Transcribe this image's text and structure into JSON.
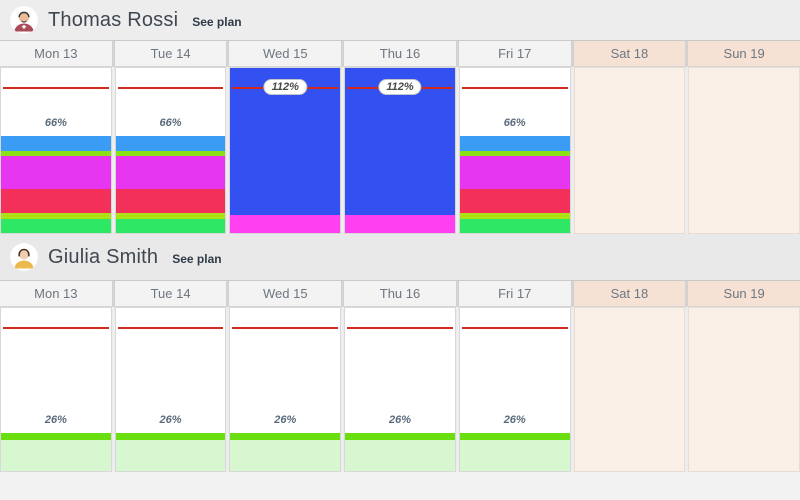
{
  "colors": {
    "capacity_line": "#d02b1e",
    "weekend_bg": "#faf0e7",
    "weekend_header_bg": "#f6e2d4",
    "overload_blue": "#3350f0"
  },
  "columns": [
    {
      "label": "Mon 13",
      "weekend": false
    },
    {
      "label": "Tue 14",
      "weekend": false
    },
    {
      "label": "Wed 15",
      "weekend": false
    },
    {
      "label": "Thu 16",
      "weekend": false
    },
    {
      "label": "Fri 17",
      "weekend": false
    },
    {
      "label": "Sat 18",
      "weekend": true
    },
    {
      "label": "Sun 19",
      "weekend": true
    }
  ],
  "people": [
    {
      "name": "Thomas Rossi",
      "see_plan": "See plan",
      "avatar": "man-beard-red-shirt",
      "allocations": [
        {
          "day": "Mon 13",
          "weekend": false,
          "total_label": "66%",
          "overload": false,
          "segments": [
            {
              "color": "#3b9cf5",
              "pct": 10.2
            },
            {
              "color": "#8ce016",
              "pct": 3.1
            },
            {
              "color": "#e636f2",
              "pct": 22.8
            },
            {
              "color": "#f23059",
              "pct": 16.0
            },
            {
              "color": "#aee016",
              "pct": 4.1
            },
            {
              "color": "#2ee865",
              "pct": 9.8
            }
          ]
        },
        {
          "day": "Tue 14",
          "weekend": false,
          "total_label": "66%",
          "overload": false,
          "segments": [
            {
              "color": "#3b9cf5",
              "pct": 10.2
            },
            {
              "color": "#8ce016",
              "pct": 3.1
            },
            {
              "color": "#e636f2",
              "pct": 22.8
            },
            {
              "color": "#f23059",
              "pct": 16.0
            },
            {
              "color": "#aee016",
              "pct": 4.1
            },
            {
              "color": "#2ee865",
              "pct": 9.8
            }
          ]
        },
        {
          "day": "Wed 15",
          "weekend": false,
          "total_label": "112%",
          "overload": true,
          "segments": [
            {
              "color": "#3350f0",
              "pct": 100
            },
            {
              "color": "#ff3ff0",
              "pct": 12
            }
          ]
        },
        {
          "day": "Thu 16",
          "weekend": false,
          "total_label": "112%",
          "overload": true,
          "segments": [
            {
              "color": "#3350f0",
              "pct": 100
            },
            {
              "color": "#ff3ff0",
              "pct": 12
            }
          ]
        },
        {
          "day": "Fri 17",
          "weekend": false,
          "total_label": "66%",
          "overload": false,
          "segments": [
            {
              "color": "#3b9cf5",
              "pct": 10.2
            },
            {
              "color": "#8ce016",
              "pct": 3.1
            },
            {
              "color": "#e636f2",
              "pct": 22.8
            },
            {
              "color": "#f23059",
              "pct": 16.0
            },
            {
              "color": "#aee016",
              "pct": 4.1
            },
            {
              "color": "#2ee865",
              "pct": 9.8
            }
          ]
        },
        {
          "day": "Sat 18",
          "weekend": true
        },
        {
          "day": "Sun 19",
          "weekend": true
        }
      ]
    },
    {
      "name": "Giulia Smith",
      "see_plan": "See plan",
      "avatar": "person-yellow-shirt",
      "allocations": [
        {
          "day": "Mon 13",
          "weekend": false,
          "total_label": "26%",
          "overload": false,
          "segments": [
            {
              "color": "#6ade0f",
              "pct": 5
            },
            {
              "color": "#d7f7d0",
              "pct": 21
            }
          ]
        },
        {
          "day": "Tue 14",
          "weekend": false,
          "total_label": "26%",
          "overload": false,
          "segments": [
            {
              "color": "#6ade0f",
              "pct": 5
            },
            {
              "color": "#d7f7d0",
              "pct": 21
            }
          ]
        },
        {
          "day": "Wed 15",
          "weekend": false,
          "total_label": "26%",
          "overload": false,
          "segments": [
            {
              "color": "#6ade0f",
              "pct": 5
            },
            {
              "color": "#d7f7d0",
              "pct": 21
            }
          ]
        },
        {
          "day": "Thu 16",
          "weekend": false,
          "total_label": "26%",
          "overload": false,
          "segments": [
            {
              "color": "#6ade0f",
              "pct": 5
            },
            {
              "color": "#d7f7d0",
              "pct": 21
            }
          ]
        },
        {
          "day": "Fri 17",
          "weekend": false,
          "total_label": "26%",
          "overload": false,
          "segments": [
            {
              "color": "#6ade0f",
              "pct": 5
            },
            {
              "color": "#d7f7d0",
              "pct": 21
            }
          ]
        },
        {
          "day": "Sat 18",
          "weekend": true
        },
        {
          "day": "Sun 19",
          "weekend": true
        }
      ]
    }
  ]
}
